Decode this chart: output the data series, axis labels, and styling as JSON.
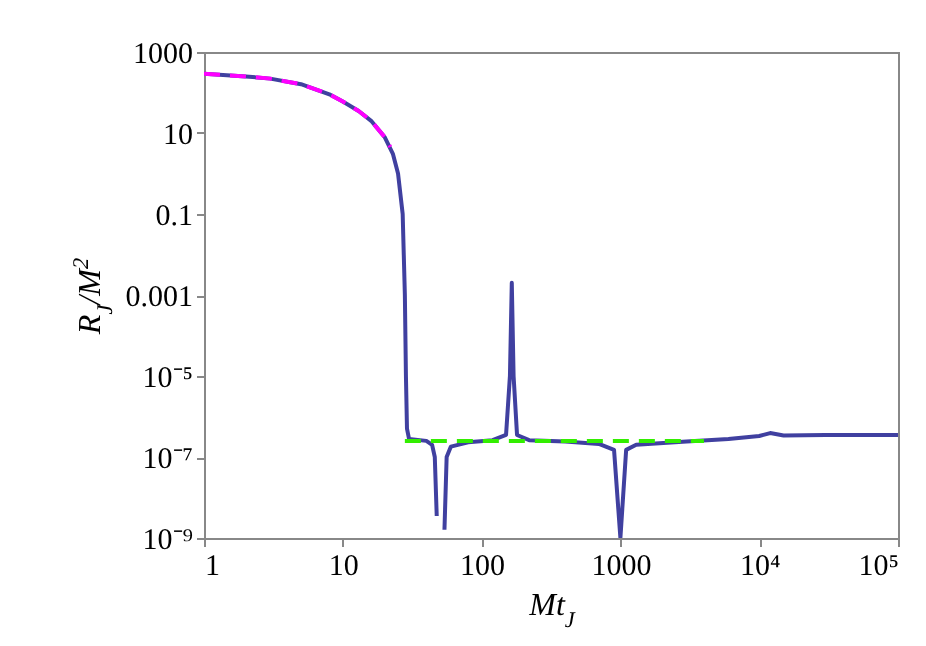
{
  "chart_data": {
    "type": "line",
    "xlabel": "Mt$_{J}$",
    "ylabel": "R$_{J}$/M$^{2}$",
    "log": "xy",
    "grid": false,
    "xlim": [
      1,
      100000
    ],
    "xticks": [
      1,
      10,
      100,
      1000,
      {
        "value": 10000,
        "label": "10⁴"
      },
      {
        "value": 100000,
        "label": "10⁵"
      }
    ],
    "ylim": [
      1e-09,
      1000
    ],
    "yticks": [
      1000,
      10,
      0.1,
      0.001,
      {
        "value": 1e-05,
        "label": "10⁻⁵"
      },
      {
        "value": 1e-07,
        "label": "10⁻⁷"
      },
      {
        "value": 1e-09,
        "label": "10⁻⁹"
      }
    ],
    "series": [
      {
        "color": "#4040a0",
        "line_style": "solid",
        "x": [
          1,
          2,
          3,
          5,
          8,
          10,
          13,
          16,
          20,
          23,
          25,
          27,
          28,
          28.5,
          29,
          30,
          40,
          44,
          46,
          47.5,
          50,
          54,
          56,
          60,
          80,
          120,
          150,
          160,
          165,
          170,
          180,
          220,
          400,
          700,
          900,
          1000,
          1100,
          1300,
          3000,
          6000,
          10000,
          12000,
          15000,
          30000,
          100000
        ],
        "values": [
          290,
          250,
          220,
          160,
          90,
          60,
          35,
          20,
          8,
          3,
          1,
          0.1,
          0.001,
          1e-05,
          5e-07,
          2.8e-07,
          2.5e-07,
          2e-07,
          1e-07,
          3.5e-09,
          null,
          1.6e-09,
          1e-07,
          1.8e-07,
          2.3e-07,
          2.6e-07,
          3.5e-07,
          1e-05,
          0.002,
          1e-05,
          3.5e-07,
          2.6e-07,
          2.4e-07,
          2.1e-07,
          1.5e-07,
          1e-09,
          1.5e-07,
          2e-07,
          2.4e-07,
          2.8e-07,
          3.3e-07,
          3.9e-07,
          3.4e-07,
          3.5e-07,
          3.5e-07
        ]
      },
      {
        "color": "#ff00ff",
        "line_style": "dashed",
        "x": [
          1,
          2,
          3,
          5,
          8,
          10,
          13,
          16,
          20,
          22
        ],
        "values": [
          290,
          250,
          220,
          160,
          90,
          60,
          35,
          20,
          8,
          4.5
        ]
      },
      {
        "color": "#33ee00",
        "line_style": "dashed",
        "x": [
          28,
          4000
        ],
        "values": [
          2.5e-07,
          2.5e-07
        ]
      }
    ]
  }
}
